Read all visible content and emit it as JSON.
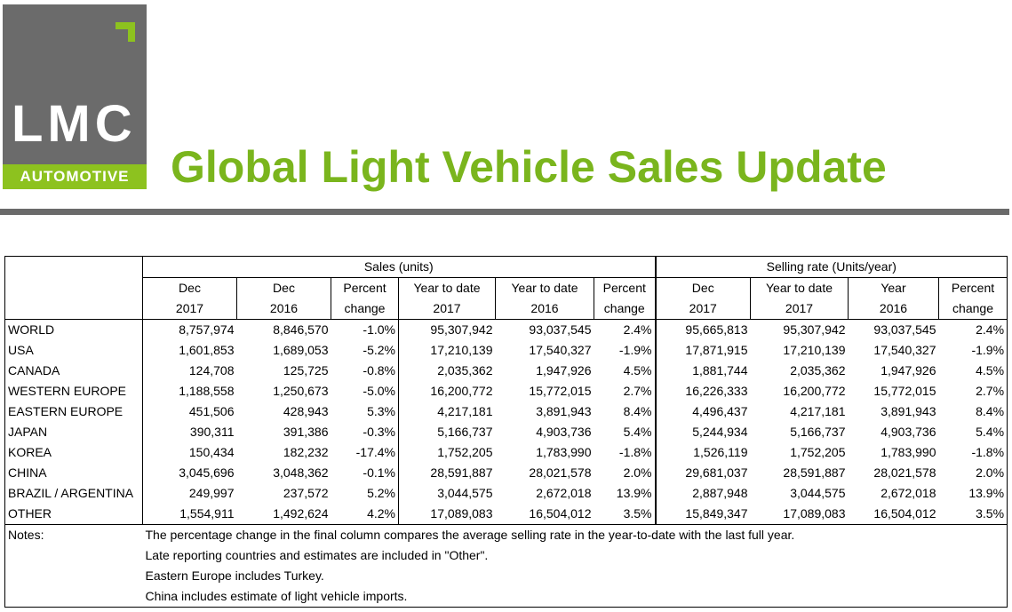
{
  "logo": {
    "name": "LMC",
    "sub": "AUTOMOTIVE"
  },
  "title": "Global Light Vehicle Sales Update",
  "table": {
    "group_sales": "Sales (units)",
    "group_rate": "Selling rate (Units/year)",
    "header_row1": [
      "Dec",
      "Dec",
      "Percent",
      "Year to date",
      "Year to date",
      "Percent",
      "Dec",
      "Year to date",
      "Year",
      "Percent"
    ],
    "header_row2": [
      "2017",
      "2016",
      "change",
      "2017",
      "2016",
      "change",
      "2017",
      "2017",
      "2016",
      "change"
    ],
    "rows": [
      [
        "WORLD",
        "8,757,974",
        "8,846,570",
        "-1.0%",
        "95,307,942",
        "93,037,545",
        "2.4%",
        "95,665,813",
        "95,307,942",
        "93,037,545",
        "2.4%"
      ],
      [
        "USA",
        "1,601,853",
        "1,689,053",
        "-5.2%",
        "17,210,139",
        "17,540,327",
        "-1.9%",
        "17,871,915",
        "17,210,139",
        "17,540,327",
        "-1.9%"
      ],
      [
        "CANADA",
        "124,708",
        "125,725",
        "-0.8%",
        "2,035,362",
        "1,947,926",
        "4.5%",
        "1,881,744",
        "2,035,362",
        "1,947,926",
        "4.5%"
      ],
      [
        "WESTERN EUROPE",
        "1,188,558",
        "1,250,673",
        "-5.0%",
        "16,200,772",
        "15,772,015",
        "2.7%",
        "16,226,333",
        "16,200,772",
        "15,772,015",
        "2.7%"
      ],
      [
        "EASTERN EUROPE",
        "451,506",
        "428,943",
        "5.3%",
        "4,217,181",
        "3,891,943",
        "8.4%",
        "4,496,437",
        "4,217,181",
        "3,891,943",
        "8.4%"
      ],
      [
        "JAPAN",
        "390,311",
        "391,386",
        "-0.3%",
        "5,166,737",
        "4,903,736",
        "5.4%",
        "5,244,934",
        "5,166,737",
        "4,903,736",
        "5.4%"
      ],
      [
        "KOREA",
        "150,434",
        "182,232",
        "-17.4%",
        "1,752,205",
        "1,783,990",
        "-1.8%",
        "1,526,119",
        "1,752,205",
        "1,783,990",
        "-1.8%"
      ],
      [
        "CHINA",
        "3,045,696",
        "3,048,362",
        "-0.1%",
        "28,591,887",
        "28,021,578",
        "2.0%",
        "29,681,037",
        "28,591,887",
        "28,021,578",
        "2.0%"
      ],
      [
        "BRAZIL / ARGENTINA",
        "249,997",
        "237,572",
        "5.2%",
        "3,044,575",
        "2,672,018",
        "13.9%",
        "2,887,948",
        "3,044,575",
        "2,672,018",
        "13.9%"
      ],
      [
        "OTHER",
        "1,554,911",
        "1,492,624",
        "4.2%",
        "17,089,083",
        "16,504,012",
        "3.5%",
        "15,849,347",
        "17,089,083",
        "16,504,012",
        "3.5%"
      ]
    ]
  },
  "notes": {
    "label": "Notes:",
    "lines": [
      "The percentage change in the final column compares the average selling rate in the year-to-date with the last full year.",
      "Late reporting countries and estimates are included in \"Other\".",
      "Eastern Europe includes Turkey.",
      "China includes estimate of light vehicle imports."
    ]
  },
  "colors": {
    "brand_green": "#7ab51d",
    "logo_gray": "#6b6b6b",
    "rule_gray": "#6a6a6a"
  }
}
